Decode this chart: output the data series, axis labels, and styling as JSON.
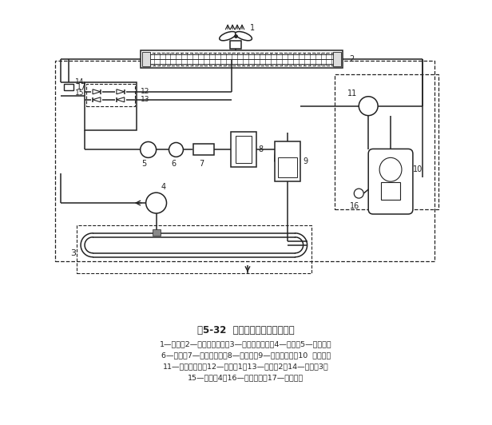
{
  "title": "图5-32  热泵型风冷式机组原理图",
  "caption_lines": [
    "1—风扇；2—翅片式换热器；3—套管式换热器；4—水泵；5—膨胀阀；",
    "6—视镜；7—干燥过滤器；8—贮液罐；9—气液分离器；10  压缩机；",
    "11—四通转向阀；12—单向阀1；13—单向阀2；14—单向阀3；",
    "15—单向阀4；16—低压接口；17—高压接口"
  ],
  "bg_color": "#ffffff",
  "lc": "#222222",
  "dc": "#222222"
}
